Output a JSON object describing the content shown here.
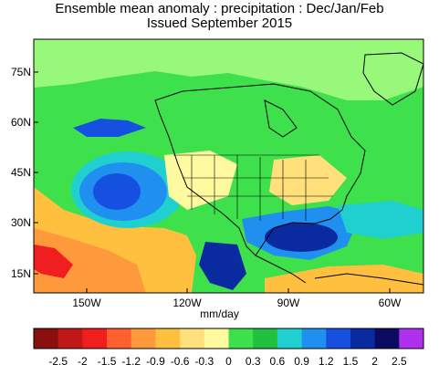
{
  "title": "Ensemble mean anomaly : precipitation : Dec/Jan/Feb",
  "subtitle": "Issued September 2015",
  "units": "mm/day",
  "lat_labels": [
    "75N",
    "60N",
    "45N",
    "30N",
    "15N"
  ],
  "lon_labels": [
    "150W",
    "120W",
    "90W",
    "60W"
  ],
  "colorbar": {
    "labels": [
      "-2.5",
      "-2",
      "-1.5",
      "-1.2",
      "-0.9",
      "-0.6",
      "-0.3",
      "0",
      "0.3",
      "0.6",
      "0.9",
      "1.2",
      "1.5",
      "2",
      "2.5"
    ],
    "colors": [
      "#8a0f0f",
      "#c01818",
      "#f01e1e",
      "#ff6030",
      "#ff9a3c",
      "#ffc040",
      "#ffe07a",
      "#fffaa0",
      "#3de04a",
      "#22c040",
      "#20d0d0",
      "#2090f0",
      "#1550e0",
      "#0a2aa0",
      "#0a0a60",
      "#b030f0"
    ]
  },
  "map_field": {
    "background": "#3ee04c",
    "regions": [
      {
        "name": "arctic-light-green",
        "color": "#98f87a"
      },
      {
        "name": "pacific-dry-south",
        "color": "#ffc040"
      },
      {
        "name": "pacific-dry-core",
        "color": "#ff9a3c"
      },
      {
        "name": "hawaii-dry",
        "color": "#f01e1e"
      },
      {
        "name": "pacific-wet-outer",
        "color": "#20d0d0"
      },
      {
        "name": "pacific-wet-mid",
        "color": "#2090f0"
      },
      {
        "name": "pacific-wet-core",
        "color": "#1550e0"
      },
      {
        "name": "gulf-of-alaska-wet",
        "color": "#1550e0"
      },
      {
        "name": "northwest-dry",
        "color": "#fffaa0"
      },
      {
        "name": "ohio-valley-dry",
        "color": "#ffe07a"
      },
      {
        "name": "southern-us-wet",
        "color": "#2090f0"
      },
      {
        "name": "gulf-wet-core",
        "color": "#0a2aa0"
      },
      {
        "name": "baja-wet",
        "color": "#0a2aa0"
      },
      {
        "name": "atlantic-wet",
        "color": "#20d0d0"
      },
      {
        "name": "tropical-dry",
        "color": "#ffc040"
      }
    ]
  }
}
